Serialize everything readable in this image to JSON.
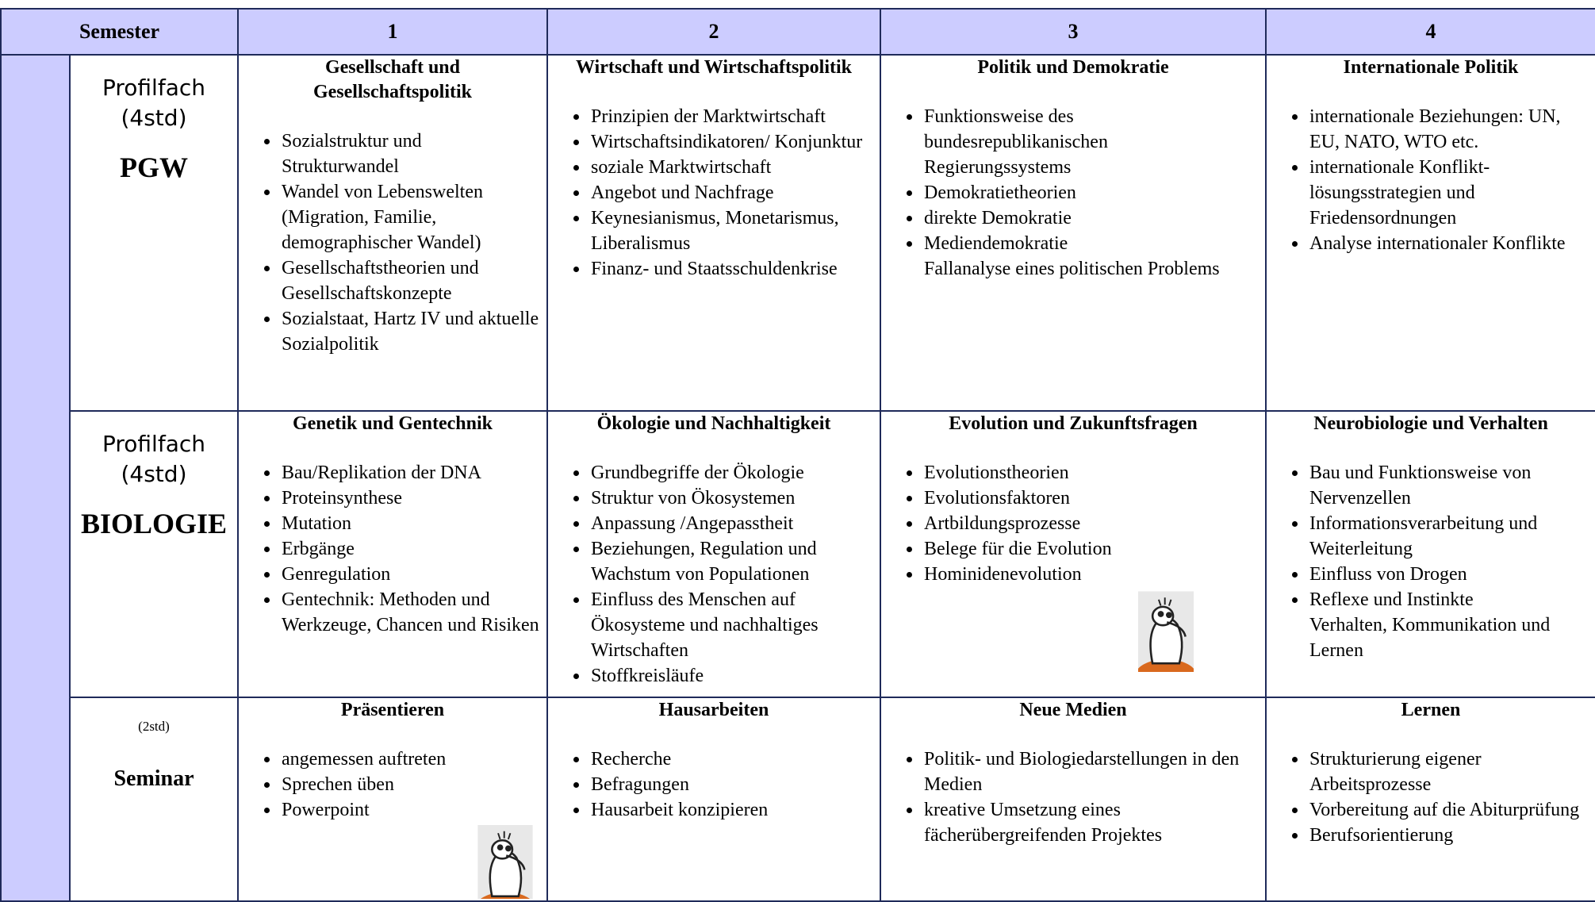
{
  "header": [
    "Semester",
    "1",
    "2",
    "3",
    "4"
  ],
  "rows": [
    {
      "label": [
        "Profilfach",
        "(4std)",
        "PGW"
      ],
      "cells": [
        {
          "title": "Gesellschaft und Gesellschaftspolitik",
          "items": [
            "Sozialstruktur und Strukturwandel",
            "Wandel von Lebenswelten (Migration, Familie, demographischer Wandel)",
            "Gesellschaftstheorien und Gesellschaftskonzepte",
            "Sozialstaat, Hartz IV und aktuelle Sozialpolitik"
          ]
        },
        {
          "title": "Wirtschaft und Wirtschaftspolitik",
          "items": [
            "Prinzipien der Marktwirtschaft",
            "Wirtschaftsindikatoren/ Konjunktur",
            "soziale Marktwirtschaft",
            "Angebot und Nachfrage",
            "Keynesianismus, Monetarismus, Liberalismus",
            "Finanz- und Staatsschuldenkrise"
          ]
        },
        {
          "title": "Politik und Demokratie",
          "items": [
            "Funktionsweise des bundesrepublikanischen Regierungssystems",
            "Demokratietheorien",
            "direkte Demokratie",
            "Mediendemokratie"
          ],
          "after": "Fallanalyse eines politischen Problems"
        },
        {
          "title": "Internationale Politik",
          "items": [
            "internationale Beziehungen: UN, EU, NATO, WTO etc.",
            "internationale Konflikt-lösungsstrategien und Friedensordnungen",
            "Analyse internationaler Konflikte"
          ]
        }
      ]
    },
    {
      "label": [
        "Profilfach",
        "(4std)",
        "BIOLOGIE"
      ],
      "cells": [
        {
          "title": "Genetik und Gentechnik",
          "items": [
            "Bau/Replikation der DNA",
            "Proteinsynthese",
            "Mutation",
            "Erbgänge",
            "Genregulation",
            "Gentechnik: Methoden und Werkzeuge, Chancen und Risiken"
          ]
        },
        {
          "title": "Ökologie und Nachhaltigkeit",
          "items": [
            "Grundbegriffe der Ökologie",
            "Struktur von Ökosystemen",
            "Anpassung /Angepasstheit",
            "Beziehungen, Regulation und Wachstum von Populationen",
            "Einfluss des Menschen auf Ökosysteme und nachhaltiges Wirtschaften",
            "Stoffkreisläufe"
          ]
        },
        {
          "title": "Evolution und Zukunftsfragen",
          "items": [
            "Evolutionstheorien",
            "Evolutionsfaktoren",
            "Artbildungsprozesse",
            "Belege für die Evolution",
            "Hominidenevolution"
          ]
        },
        {
          "title": "Neurobiologie und Verhalten",
          "items": [
            "Bau und Funktionsweise von Nervenzellen",
            "Informationsverarbeitung und Weiterleitung",
            "Einfluss von Drogen",
            "Reflexe und Instinkte"
          ],
          "after": "Verhalten, Kommunikation und Lernen"
        }
      ]
    },
    {
      "label": [
        "(2std)",
        "Seminar"
      ],
      "cells": [
        {
          "title": "Präsentieren",
          "items": [
            "angemessen auftreten",
            "Sprechen üben",
            "Powerpoint"
          ]
        },
        {
          "title": "Hausarbeiten",
          "items": [
            "Recherche",
            "Befragungen",
            "Hausarbeit konzipieren"
          ]
        },
        {
          "title": "Neue Medien",
          "items": [
            "Politik- und Biologiedarstellungen in den Medien",
            "kreative Umsetzung eines fächerübergreifenden Projektes"
          ]
        },
        {
          "title": "Lernen",
          "items": [
            "Strukturierung eigener Arbeitsprozesse",
            "Vorbereitung auf die Abiturprüfung",
            "Berufsorientierung"
          ]
        }
      ]
    }
  ]
}
